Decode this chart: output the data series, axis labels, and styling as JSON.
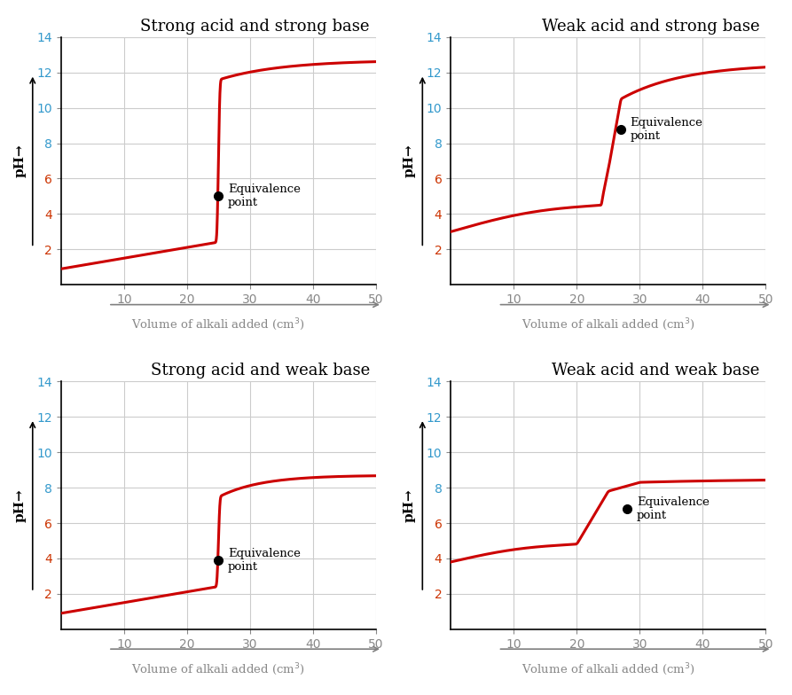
{
  "plots": [
    {
      "title": "Strong acid and strong base",
      "eq_x": 25,
      "eq_y": 5,
      "start_ph": 0.9,
      "end_ph": 12.7,
      "inflection_x": 25,
      "inflection_y": 7,
      "sharpness": 12,
      "pre_slope": 0.05,
      "post_slope": 0.02,
      "type": "strong_strong"
    },
    {
      "title": "Weak acid and strong base",
      "eq_x": 27,
      "eq_y": 8.8,
      "start_ph": 3.0,
      "end_ph": 12.5,
      "inflection_x": 26,
      "inflection_y": 8.8,
      "sharpness": 8,
      "pre_slope": 0.08,
      "post_slope": 0.02,
      "type": "weak_strong"
    },
    {
      "title": "Strong acid and weak base",
      "eq_x": 25,
      "eq_y": 3.9,
      "start_ph": 0.9,
      "end_ph": 8.7,
      "inflection_x": 25,
      "inflection_y": 5,
      "sharpness": 10,
      "pre_slope": 0.05,
      "post_slope": 0.02,
      "type": "strong_weak"
    },
    {
      "title": "Weak acid and weak base",
      "eq_x": 28,
      "eq_y": 6.8,
      "start_ph": 3.8,
      "end_ph": 8.5,
      "inflection_x": 27,
      "inflection_y": 6.5,
      "sharpness": 5,
      "pre_slope": 0.06,
      "post_slope": 0.02,
      "type": "weak_weak"
    }
  ],
  "curve_color": "#cc0000",
  "dot_color": "black",
  "title_fontsize": 13,
  "label_color_blue": "#3399cc",
  "label_color_red": "#cc3300",
  "axis_label_color": "#888888",
  "grid_color": "#cccccc",
  "bg_color": "#ffffff",
  "xlim": [
    0,
    50
  ],
  "ylim": [
    0,
    14
  ],
  "xticks": [
    10,
    20,
    30,
    40,
    50
  ],
  "yticks": [
    2,
    4,
    6,
    8,
    10,
    12,
    14
  ]
}
